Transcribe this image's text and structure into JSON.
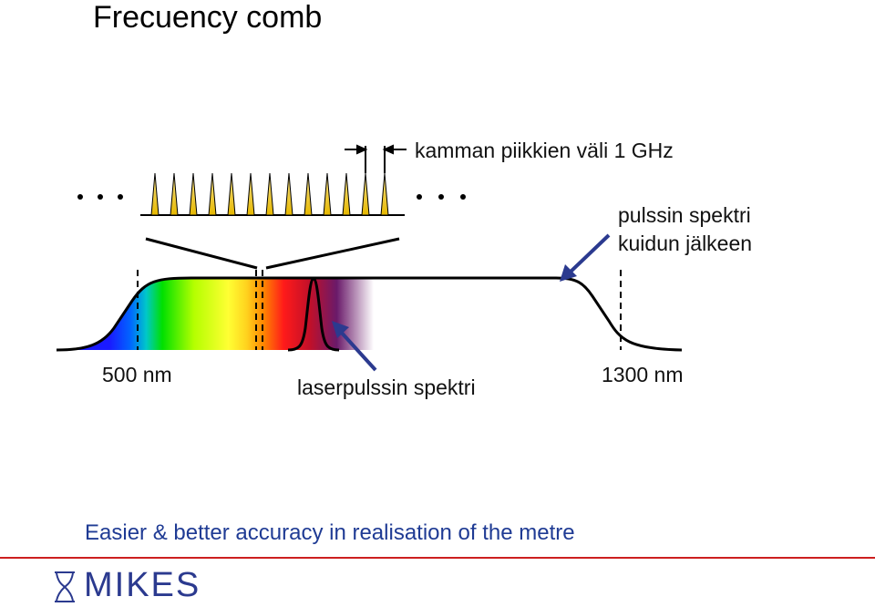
{
  "title": "Frecuency comb",
  "labels": {
    "comb_spacing": "kamman piikkien väli 1 GHz",
    "fiber_spectrum_line1": "pulssin spektri",
    "fiber_spectrum_line2": "kuidun jälkeen",
    "wavelength_low": "500 nm",
    "wavelength_high": "1300 nm",
    "laser_spectrum": "laserpulssin spektri"
  },
  "footer": {
    "statement": "Easier & better accuracy in realisation of the metre",
    "logo": "MIKES"
  },
  "colors": {
    "footer_text": "#1f3b94",
    "rule": "#cc1f1f",
    "arrow": "#2b3a8f",
    "comb_tooth": "#f0c419"
  },
  "icons": [
    "hourglass-logo-icon"
  ]
}
